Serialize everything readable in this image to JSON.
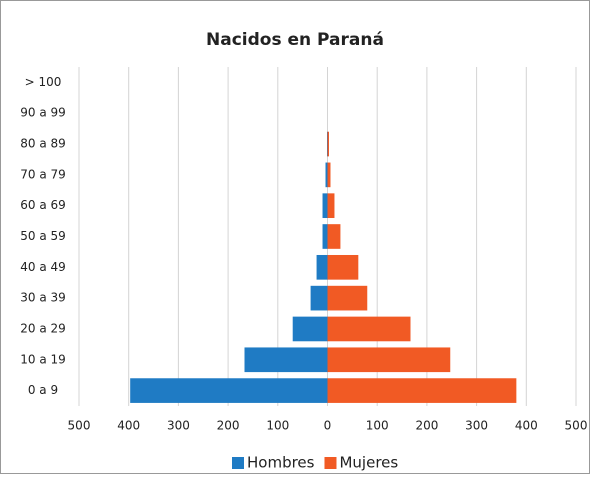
{
  "chart_data": {
    "type": "bar",
    "orientation": "horizontal",
    "stacked": true,
    "title": "Nacidos en Paraná",
    "categories": [
      "0 a 9",
      "10 a 19",
      "20 a 29",
      "30 a 39",
      "40 a 49",
      "50 a 59",
      "60 a 69",
      "70 a 79",
      "80 a 89",
      "90 a 99",
      "> 100"
    ],
    "series": [
      {
        "name": "Hombres",
        "color": "#1f7bc4",
        "values": [
          -397,
          -167,
          -70,
          -34,
          -22,
          -10,
          -10,
          -4,
          -1,
          0,
          0
        ]
      },
      {
        "name": "Mujeres",
        "color": "#f15a24",
        "values": [
          380,
          247,
          167,
          80,
          62,
          26,
          14,
          6,
          3,
          0,
          0
        ]
      }
    ],
    "xlim": [
      -500,
      500
    ],
    "xticks": [
      {
        "value": -500,
        "label": "500"
      },
      {
        "value": -400,
        "label": "400"
      },
      {
        "value": -300,
        "label": "300"
      },
      {
        "value": -200,
        "label": "200"
      },
      {
        "value": -100,
        "label": "100"
      },
      0,
      100,
      200,
      300,
      400,
      500
    ],
    "grid": true,
    "legend": "bottom"
  }
}
